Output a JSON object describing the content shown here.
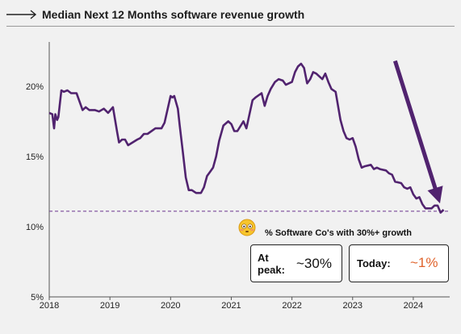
{
  "header": {
    "title": "Median Next 12 Months software revenue growth"
  },
  "chart_data": {
    "type": "line",
    "title": "Median Next 12 Months software revenue growth",
    "xlabel": "",
    "ylabel": "",
    "xlim": [
      2018,
      2024.6
    ],
    "ylim": [
      5,
      22
    ],
    "x_ticks": [
      "2018",
      "2019",
      "2020",
      "2021",
      "2022",
      "2023",
      "2024"
    ],
    "y_ticks": [
      {
        "value": 20,
        "label": "20%"
      },
      {
        "value": 15,
        "label": "15%"
      },
      {
        "value": 10,
        "label": "10%"
      },
      {
        "value": 5,
        "label": "5%"
      }
    ],
    "grid": false,
    "series": [
      {
        "color": "#51236f",
        "x": [
          2018.0,
          2018.05,
          2018.08,
          2018.1,
          2018.13,
          2018.15,
          2018.2,
          2018.24,
          2018.3,
          2018.36,
          2018.45,
          2018.55,
          2018.6,
          2018.66,
          2018.75,
          2018.82,
          2018.9,
          2018.97,
          2019.05,
          2019.12,
          2019.15,
          2019.2,
          2019.25,
          2019.3,
          2019.45,
          2019.5,
          2019.56,
          2019.62,
          2019.75,
          2019.85,
          2019.9,
          2020.0,
          2020.03,
          2020.06,
          2020.12,
          2020.15,
          2020.2,
          2020.25,
          2020.3,
          2020.35,
          2020.42,
          2020.5,
          2020.55,
          2020.6,
          2020.65,
          2020.7,
          2020.75,
          2020.8,
          2020.87,
          2020.95,
          2021.0,
          2021.05,
          2021.1,
          2021.2,
          2021.25,
          2021.3,
          2021.35,
          2021.4,
          2021.5,
          2021.55,
          2021.6,
          2021.65,
          2021.72,
          2021.78,
          2021.85,
          2021.9,
          2022.0,
          2022.05,
          2022.1,
          2022.15,
          2022.2,
          2022.25,
          2022.3,
          2022.35,
          2022.4,
          2022.5,
          2022.55,
          2022.6,
          2022.65,
          2022.72,
          2022.8,
          2022.85,
          2022.9,
          2022.95,
          2023.0,
          2023.05,
          2023.1,
          2023.15,
          2023.2,
          2023.3,
          2023.35,
          2023.4,
          2023.45,
          2023.55,
          2023.6,
          2023.65,
          2023.7,
          2023.8,
          2023.85,
          2023.9,
          2023.95,
          2024.0,
          2024.05,
          2024.1,
          2024.15,
          2024.2,
          2024.25,
          2024.3,
          2024.35,
          2024.4,
          2024.45,
          2024.5
        ],
        "y": [
          18.1,
          18.0,
          17.0,
          18.0,
          17.6,
          17.8,
          19.7,
          19.6,
          19.7,
          19.5,
          19.5,
          18.3,
          18.5,
          18.3,
          18.3,
          18.2,
          18.4,
          18.1,
          18.5,
          16.7,
          16.0,
          16.2,
          16.2,
          15.8,
          16.2,
          16.3,
          16.6,
          16.6,
          17.0,
          17.0,
          17.4,
          19.3,
          19.2,
          19.3,
          18.4,
          17.2,
          15.4,
          13.5,
          12.6,
          12.6,
          12.4,
          12.4,
          12.8,
          13.6,
          13.9,
          14.2,
          15.0,
          16.1,
          17.2,
          17.5,
          17.3,
          16.8,
          16.8,
          17.5,
          17.0,
          18.0,
          19.0,
          19.2,
          19.5,
          18.6,
          19.3,
          19.8,
          20.3,
          20.5,
          20.4,
          20.1,
          20.3,
          21.0,
          21.4,
          21.6,
          21.3,
          20.2,
          20.5,
          21.0,
          20.9,
          20.5,
          20.9,
          20.3,
          19.8,
          19.6,
          17.6,
          16.8,
          16.3,
          16.2,
          16.3,
          15.7,
          14.8,
          14.2,
          14.3,
          14.4,
          14.1,
          14.2,
          14.1,
          14.0,
          13.8,
          13.7,
          13.2,
          13.1,
          12.8,
          12.7,
          12.8,
          12.3,
          12.0,
          12.1,
          11.6,
          11.3,
          11.3,
          11.3,
          11.5,
          11.5,
          11.0,
          11.2
        ]
      }
    ],
    "reference_line": {
      "y": 11.1,
      "style": "dashed"
    },
    "trend_arrow": {
      "from": [
        2023.7,
        21.8
      ],
      "to": [
        2024.4,
        12.2
      ]
    }
  },
  "callout": {
    "title": "% Software Co's with 30%+ growth",
    "emoji": "flushed-face",
    "peak_label": "At peak:",
    "peak_value": "~30%",
    "today_label": "Today:",
    "today_value": "~1%",
    "today_color": "#e0622a"
  }
}
